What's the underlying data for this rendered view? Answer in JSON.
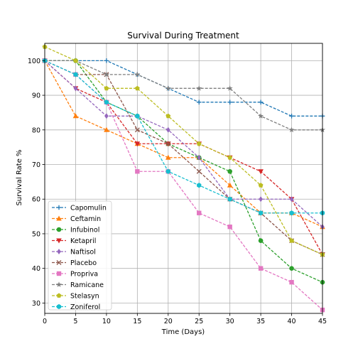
{
  "chart_data": {
    "type": "line",
    "title": "Survival During Treatment",
    "xlabel": "Time (Days)",
    "ylabel": "Survival Rate %",
    "xlim": [
      0,
      45
    ],
    "ylim": [
      27,
      105
    ],
    "xticks": [
      0,
      5,
      10,
      15,
      20,
      25,
      30,
      35,
      40,
      45
    ],
    "yticks": [
      30,
      40,
      50,
      60,
      70,
      80,
      90,
      100
    ],
    "grid": true,
    "legend_position": "lower-left",
    "x": [
      0,
      5,
      10,
      15,
      20,
      25,
      30,
      35,
      40,
      45
    ],
    "series": [
      {
        "name": "Capomulin",
        "color": "#1f77b4",
        "marker": "plus",
        "values": [
          100,
          100,
          100,
          96,
          92,
          88,
          88,
          88,
          84,
          84
        ]
      },
      {
        "name": "Ceftamin",
        "color": "#ff7f0e",
        "marker": "triangle-up",
        "values": [
          100,
          84,
          80,
          76,
          72,
          72,
          64,
          56,
          56,
          52
        ]
      },
      {
        "name": "Infubinol",
        "color": "#2ca02c",
        "marker": "circle",
        "values": [
          100,
          100,
          88,
          84,
          76,
          72,
          68,
          48,
          40,
          36
        ]
      },
      {
        "name": "Ketapril",
        "color": "#d62728",
        "marker": "triangle-down",
        "values": [
          100,
          92,
          88,
          76,
          76,
          76,
          72,
          68,
          60,
          44
        ]
      },
      {
        "name": "Naftisol",
        "color": "#9467bd",
        "marker": "diamond",
        "values": [
          100,
          92,
          84,
          84,
          80,
          72,
          60,
          60,
          60,
          52
        ]
      },
      {
        "name": "Placebo",
        "color": "#8c564b",
        "marker": "x",
        "values": [
          100,
          96,
          96,
          80,
          76,
          68,
          60,
          56,
          48,
          44
        ]
      },
      {
        "name": "Propriva",
        "color": "#e377c2",
        "marker": "square",
        "values": [
          100,
          96,
          88,
          68,
          68,
          56,
          52,
          40,
          36,
          28
        ]
      },
      {
        "name": "Ramicane",
        "color": "#7f7f7f",
        "marker": "star",
        "values": [
          100,
          100,
          96,
          96,
          92,
          92,
          92,
          84,
          80,
          80
        ]
      },
      {
        "name": "Stelasyn",
        "color": "#bcbd22",
        "marker": "pentagon",
        "values": [
          104,
          100,
          92,
          92,
          84,
          76,
          72,
          64,
          48,
          44
        ]
      },
      {
        "name": "Zoniferol",
        "color": "#17becf",
        "marker": "hexagon",
        "values": [
          100,
          96,
          88,
          84,
          68,
          64,
          60,
          56,
          56,
          56
        ]
      }
    ]
  }
}
